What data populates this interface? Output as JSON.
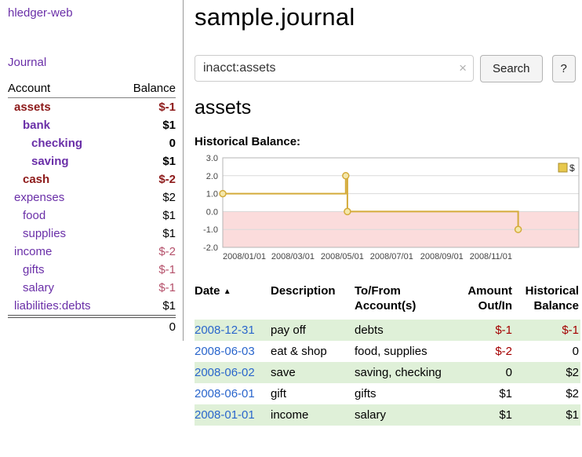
{
  "app": {
    "name": "hledger-web"
  },
  "sidebar": {
    "journal_link": "Journal",
    "accounts_table": {
      "col_account": "Account",
      "col_balance": "Balance",
      "rows": [
        {
          "name": "assets",
          "depth": 0,
          "balance": "$-1",
          "bold": true,
          "name_neg": true,
          "bal_class": "neg-dark"
        },
        {
          "name": "bank",
          "depth": 1,
          "balance": "$1",
          "bold": true,
          "name_neg": false,
          "bal_class": ""
        },
        {
          "name": "checking",
          "depth": 2,
          "balance": "0",
          "bold": true,
          "name_neg": false,
          "bal_class": ""
        },
        {
          "name": "saving",
          "depth": 2,
          "balance": "$1",
          "bold": true,
          "name_neg": false,
          "bal_class": ""
        },
        {
          "name": "cash",
          "depth": 1,
          "balance": "$-2",
          "bold": true,
          "name_neg": true,
          "bal_class": "neg-dark"
        },
        {
          "name": "expenses",
          "depth": 0,
          "balance": "$2",
          "bold": false,
          "name_neg": false,
          "bal_class": ""
        },
        {
          "name": "food",
          "depth": 1,
          "balance": "$1",
          "bold": false,
          "name_neg": false,
          "bal_class": ""
        },
        {
          "name": "supplies",
          "depth": 1,
          "balance": "$1",
          "bold": false,
          "name_neg": false,
          "bal_class": ""
        },
        {
          "name": "income",
          "depth": 0,
          "balance": "$-2",
          "bold": false,
          "name_neg": false,
          "bal_class": "neg-rose"
        },
        {
          "name": "gifts",
          "depth": 1,
          "balance": "$-1",
          "bold": false,
          "name_neg": false,
          "bal_class": "neg-rose"
        },
        {
          "name": "salary",
          "depth": 1,
          "balance": "$-1",
          "bold": false,
          "name_neg": false,
          "bal_class": "neg-rose"
        },
        {
          "name": "liabilities:debts",
          "depth": 0,
          "balance": "$1",
          "bold": false,
          "name_neg": false,
          "bal_class": ""
        }
      ],
      "total": "0"
    }
  },
  "main": {
    "title": "sample.journal",
    "search": {
      "value": "inacct:assets",
      "clear_icon": "×",
      "button_label": "Search",
      "help_label": "?"
    },
    "account_heading": "assets",
    "chart_label": "Historical Balance:",
    "register_table": {
      "headers": {
        "date": "Date",
        "sort_icon": "▲",
        "description": "Description",
        "tofrom": "To/From Account(s)",
        "amount": "Amount Out/In",
        "balance": "Historical Balance"
      },
      "rows": [
        {
          "date": "2008-12-31",
          "description": "pay off",
          "accounts": "debts",
          "amount": "$-1",
          "balance": "$-1",
          "amount_neg": true,
          "balance_neg": true,
          "shaded": true
        },
        {
          "date": "2008-06-03",
          "description": "eat & shop",
          "accounts": "food, supplies",
          "amount": "$-2",
          "balance": "0",
          "amount_neg": true,
          "balance_neg": false,
          "shaded": false
        },
        {
          "date": "2008-06-02",
          "description": "save",
          "accounts": "saving, checking",
          "amount": "0",
          "balance": "$2",
          "amount_neg": false,
          "balance_neg": false,
          "shaded": true
        },
        {
          "date": "2008-06-01",
          "description": "gift",
          "accounts": "gifts",
          "amount": "$1",
          "balance": "$2",
          "amount_neg": false,
          "balance_neg": false,
          "shaded": false
        },
        {
          "date": "2008-01-01",
          "description": "income",
          "accounts": "salary",
          "amount": "$1",
          "balance": "$1",
          "amount_neg": false,
          "balance_neg": false,
          "shaded": true
        }
      ]
    }
  },
  "chart_data": {
    "type": "line",
    "title": "Historical Balance",
    "x_type": "date",
    "xlim": [
      "2008-01-01",
      "2009-03-16"
    ],
    "ylim": [
      -2,
      3
    ],
    "y_ticks": [
      3,
      2,
      1,
      0,
      -1,
      -2
    ],
    "x_ticks": [
      {
        "date": "2008-01-01",
        "label": "2008/01/01"
      },
      {
        "date": "2008-03-01",
        "label": "2008/03/01"
      },
      {
        "date": "2008-05-01",
        "label": "2008/05/01"
      },
      {
        "date": "2008-07-01",
        "label": "2008/07/01"
      },
      {
        "date": "2008-09-01",
        "label": "2008/09/01"
      },
      {
        "date": "2008-11-01",
        "label": "2008/11/01"
      }
    ],
    "series": [
      {
        "name": "$",
        "color": "#d4ab3a",
        "points": [
          [
            "2008-01-01",
            1
          ],
          [
            "2008-06-01",
            1
          ],
          [
            "2008-06-01",
            2
          ],
          [
            "2008-06-03",
            2
          ],
          [
            "2008-06-03",
            0
          ],
          [
            "2008-12-31",
            0
          ],
          [
            "2008-12-31",
            -1
          ]
        ],
        "markers": [
          [
            "2008-01-01",
            1
          ],
          [
            "2008-06-01",
            2
          ],
          [
            "2008-06-03",
            0
          ],
          [
            "2008-12-31",
            -1
          ]
        ]
      }
    ],
    "legend": {
      "label": "$",
      "position": "top-right"
    },
    "negative_region_color": "#fbdcdc",
    "grid": "horizontal"
  }
}
